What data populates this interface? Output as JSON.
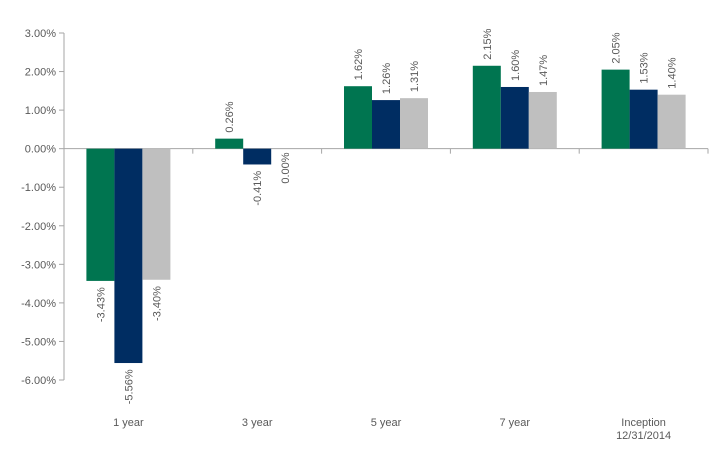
{
  "chart_data": {
    "type": "bar",
    "title": "",
    "xlabel": "",
    "ylabel": "",
    "categories": [
      [
        "1 year"
      ],
      [
        "3 year"
      ],
      [
        "5 year"
      ],
      [
        "7 year"
      ],
      [
        "Inception",
        "12/31/2014"
      ]
    ],
    "series": [
      {
        "color": "#007550",
        "values": [
          -3.43,
          0.26,
          1.62,
          2.15,
          2.05
        ],
        "labels": [
          "-3.43%",
          "0.26%",
          "1.62%",
          "2.15%",
          "2.05%"
        ]
      },
      {
        "color": "#002D62",
        "values": [
          -5.56,
          -0.41,
          1.26,
          1.6,
          1.53
        ],
        "labels": [
          "-5.56%",
          "-0.41%",
          "1.26%",
          "1.60%",
          "1.53%"
        ]
      },
      {
        "color": "#BFBFBF",
        "values": [
          -3.4,
          0.0,
          1.31,
          1.47,
          1.4
        ],
        "labels": [
          "-3.40%",
          "0.00%",
          "1.31%",
          "1.47%",
          "1.40%"
        ]
      }
    ],
    "ylim": [
      -6,
      3
    ],
    "yticks": [
      3,
      2,
      1,
      0,
      -1,
      -2,
      -3,
      -4,
      -5,
      -6
    ],
    "ytick_labels": [
      "3.00%",
      "2.00%",
      "1.00%",
      "0.00%",
      "-1.00%",
      "-2.00%",
      "-3.00%",
      "-4.00%",
      "-5.00%",
      "-6.00%"
    ],
    "grid": false,
    "legend": "none"
  }
}
